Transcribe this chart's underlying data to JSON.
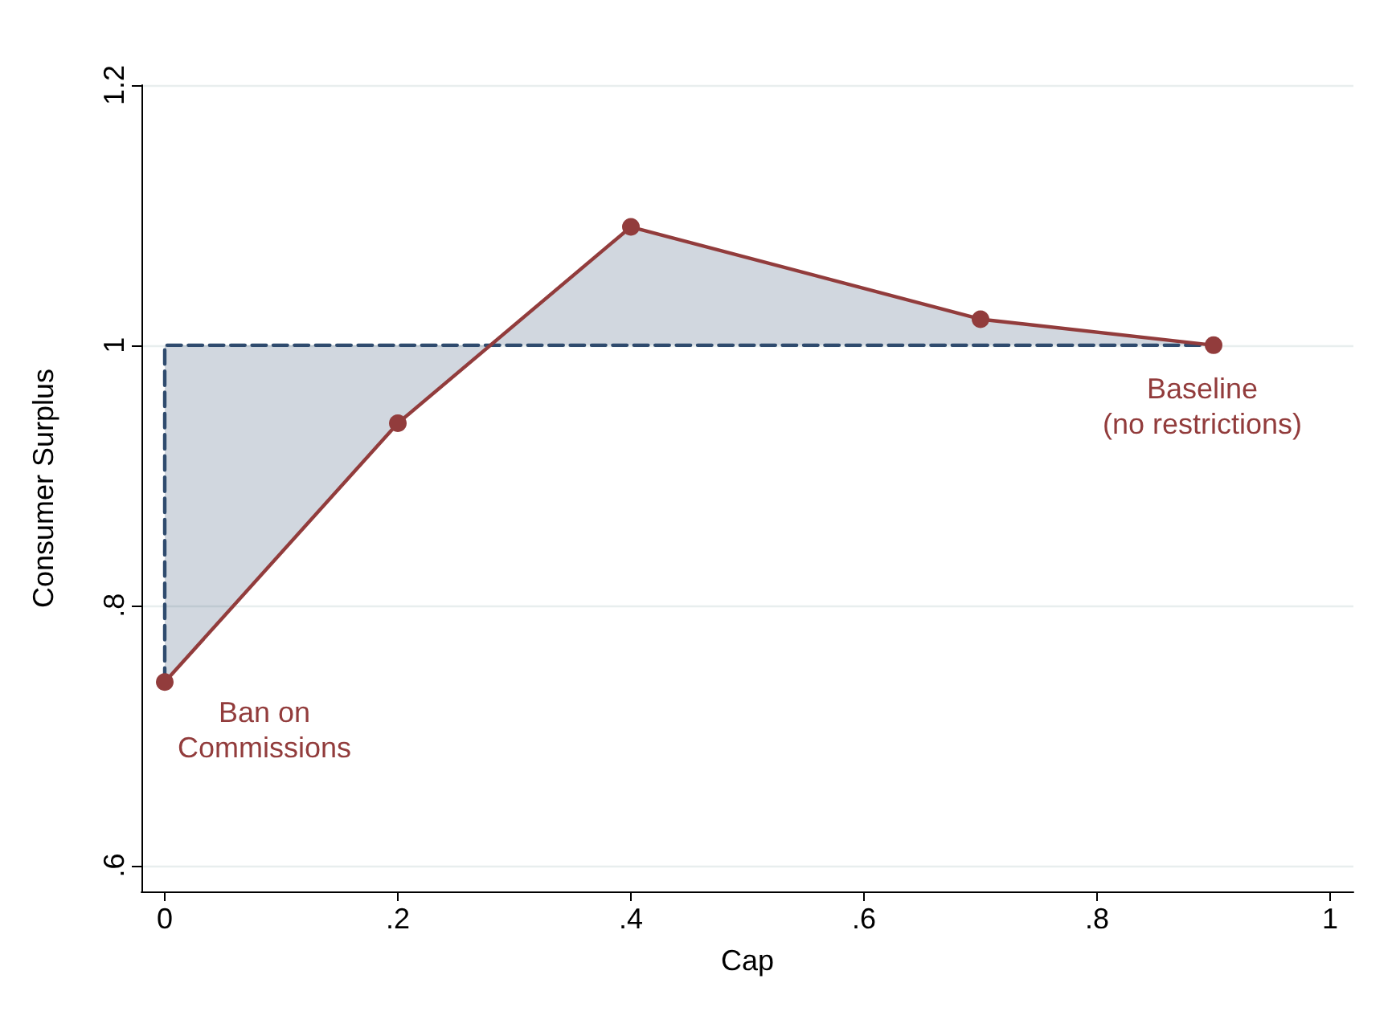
{
  "chart_data": {
    "type": "line",
    "xlabel": "Cap",
    "ylabel": "Consumer Surplus",
    "xlim": [
      -0.02,
      1.02
    ],
    "ylim": [
      0.58,
      1.2
    ],
    "xticks": [
      0,
      {
        "value": 0.2,
        "label": ".2"
      },
      {
        "value": 0.4,
        "label": ".4"
      },
      {
        "value": 0.6,
        "label": ".6"
      },
      {
        "value": 0.8,
        "label": ".8"
      },
      1
    ],
    "yticks": [
      {
        "value": 0.6,
        "label": ".6"
      },
      {
        "value": 0.8,
        "label": ".8"
      },
      1,
      1.2
    ],
    "grid": "y",
    "series": [
      {
        "x": [
          0,
          0,
          0.9
        ],
        "values": [
          0.741,
          1,
          1
        ],
        "color": "#2f4b6e",
        "line_style": "dashed",
        "marker": "none"
      },
      {
        "x": [
          0,
          0.2,
          0.4,
          0.7,
          0.9
        ],
        "values": [
          0.741,
          0.94,
          1.091,
          1.02,
          1.0
        ],
        "lower": [
          1,
          1,
          1,
          1,
          1
        ],
        "upper": [
          0.741,
          0.94,
          1.091,
          1.02,
          1.0
        ],
        "color": "#923c3c",
        "line_style": "solid",
        "marker": "circle"
      }
    ],
    "annotations": [
      {
        "text": "Ban on\nCommissions",
        "x": 0,
        "y": 0.741
      },
      {
        "text": "Baseline\n(no restrictions)",
        "x": 0.9,
        "y": 1.0
      }
    ]
  }
}
